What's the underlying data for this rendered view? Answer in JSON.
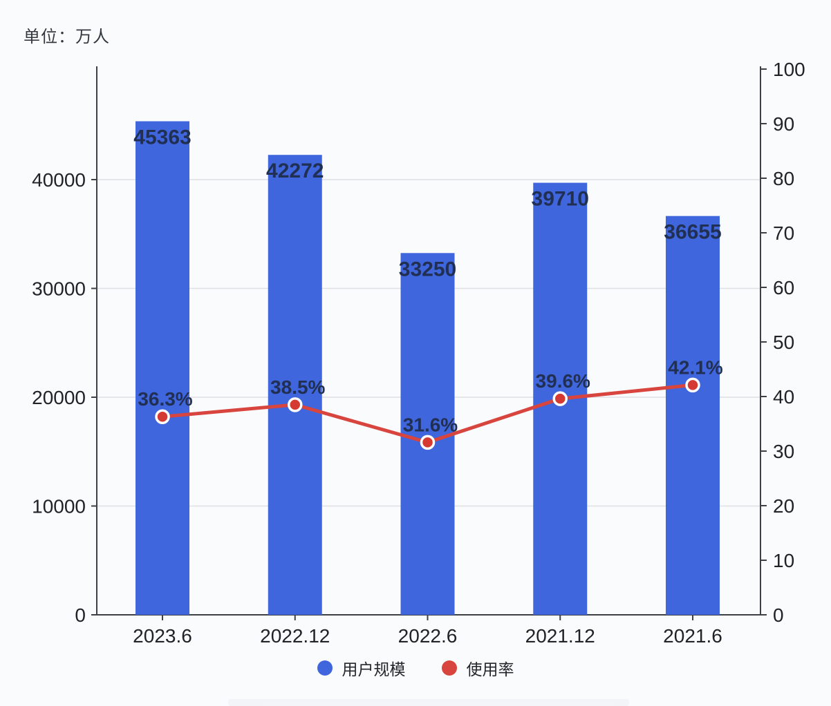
{
  "unit_label": "单位：万人",
  "chart_data": {
    "type": "bar",
    "combo": "bar+line",
    "categories": [
      "2023.6",
      "2022.12",
      "2022.6",
      "2021.12",
      "2021.6"
    ],
    "series": [
      {
        "name": "用户规模",
        "type": "bar",
        "axis": "left",
        "values": [
          45363,
          42272,
          33250,
          39710,
          36655
        ],
        "color": "#3f66dd"
      },
      {
        "name": "使用率",
        "type": "line",
        "axis": "right",
        "values": [
          36.3,
          38.5,
          31.6,
          39.6,
          42.1
        ],
        "value_suffix": "%",
        "color": "#d8453e"
      }
    ],
    "left_axis": {
      "ticks": [
        0,
        10000,
        20000,
        30000,
        40000
      ],
      "range": [
        0,
        50000
      ]
    },
    "right_axis": {
      "ticks": [
        0,
        10,
        20,
        30,
        40,
        50,
        60,
        70,
        80,
        90,
        100
      ],
      "range": [
        0,
        100
      ]
    },
    "grid": true,
    "legend_position": "bottom",
    "title": "",
    "xlabel": "",
    "ylabel_left": "单位：万人",
    "ylabel_right": ""
  },
  "colors": {
    "bar": "#3f66dd",
    "line": "#d8453e",
    "marker_fill": "#d43a31",
    "marker_stroke": "#ffffff",
    "data_label": "#212f52",
    "axis_line": "#3c3f45",
    "axis_text": "#202226",
    "grid_line": "#dfe0e4",
    "background": "#fafbfc"
  }
}
